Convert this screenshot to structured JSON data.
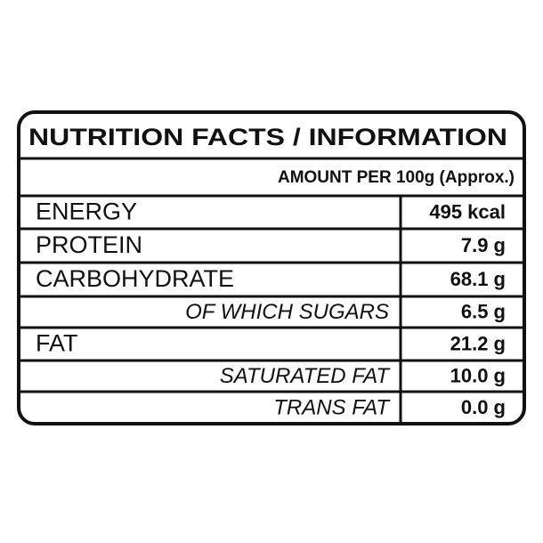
{
  "header": {
    "title": "NUTRITION FACTS / INFORMATION",
    "subtitle": "AMOUNT PER 100g (Approx.)"
  },
  "table": {
    "rows": [
      [
        "ENERGY",
        "495 kcal"
      ],
      [
        "PROTEIN",
        "7.9 g"
      ],
      [
        "CARBOHYDRATE",
        "68.1 g"
      ],
      [
        "OF WHICH SUGARS",
        "6.5 g"
      ],
      [
        "FAT",
        "21.2 g"
      ],
      [
        "SATURATED FAT",
        "10.0 g"
      ],
      [
        "TRANS FAT",
        "0.0 g"
      ]
    ]
  }
}
